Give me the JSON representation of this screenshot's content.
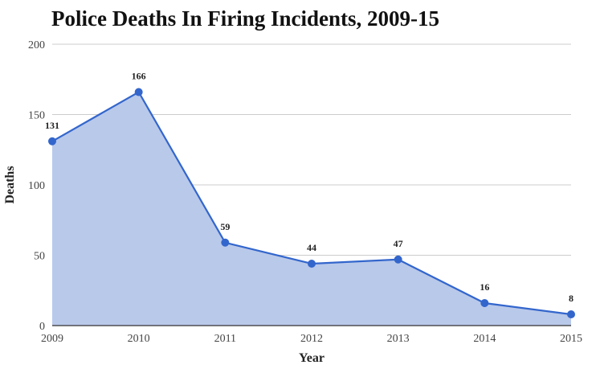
{
  "chart_data": {
    "type": "area",
    "title": "Police Deaths In Firing Incidents, 2009-15",
    "xlabel": "Year",
    "ylabel": "Deaths",
    "categories": [
      "2009",
      "2010",
      "2011",
      "2012",
      "2013",
      "2014",
      "2015"
    ],
    "series": [
      {
        "values": [
          131,
          166,
          59,
          44,
          47,
          16,
          8
        ]
      }
    ],
    "data_labels": [
      "131",
      "166",
      "59",
      "44",
      "47",
      "16",
      "8"
    ],
    "ylim": [
      0,
      200
    ],
    "yticks": [
      "0",
      "50",
      "100",
      "150",
      "200"
    ],
    "grid": true,
    "legend": "none",
    "colors": {
      "line": "#3366cc",
      "fill": "#b9c9ea",
      "grid": "#cccccc",
      "axis": "#333333"
    }
  }
}
